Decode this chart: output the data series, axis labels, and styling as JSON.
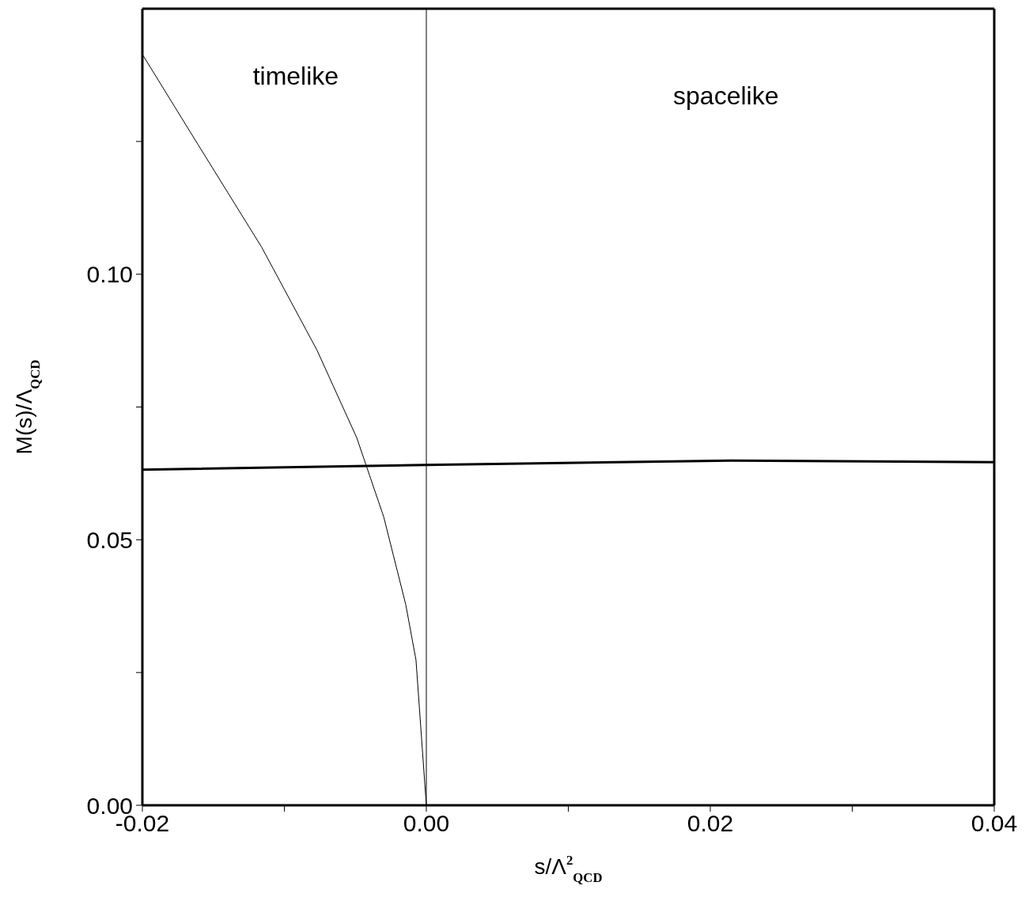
{
  "chart_data": {
    "type": "line",
    "xlabel": "s/Λ$^{2}$$_{QCD}$",
    "ylabel": "M(s)/Λ$_{QCD}$",
    "series": [
      {
        "color": "#000000",
        "x": [
          -0.02,
          -0.0161,
          -0.0116,
          -0.0077,
          -0.0049,
          -0.003,
          -0.00145,
          -0.00073,
          0
        ],
        "values": [
          0.1414,
          0.1245,
          0.1051,
          0.0857,
          0.0692,
          0.0543,
          0.0378,
          0.0274,
          0
        ]
      },
      {
        "color": "#000000",
        "x": [
          -0.02,
          0,
          0.0215,
          0.04
        ],
        "values": [
          0.0632,
          0.0641,
          0.0649,
          0.0646
        ]
      }
    ],
    "xlim": [
      -0.02,
      0.04
    ],
    "ylim": [
      0,
      0.15
    ],
    "xticks": [
      -0.02,
      {
        "value": -0.01,
        "label": null
      },
      {
        "value": 0,
        "label": "0.00"
      },
      {
        "value": 0.01,
        "label": null
      },
      0.02,
      {
        "value": 0.03,
        "label": null
      },
      0.04
    ],
    "yticks": [
      {
        "value": 0,
        "label": "0.00"
      },
      {
        "value": 0.025,
        "label": null
      },
      0.05,
      {
        "value": 0.075,
        "label": null
      },
      {
        "value": 0.1,
        "label": "0.10"
      },
      {
        "value": 0.125,
        "label": null
      }
    ],
    "ref_lines": [
      {
        "axis": "x",
        "value": 0,
        "color": "#000000"
      }
    ],
    "annotations": [
      "timelike",
      "spacelike"
    ],
    "marker": "none",
    "line_style": "solid"
  }
}
